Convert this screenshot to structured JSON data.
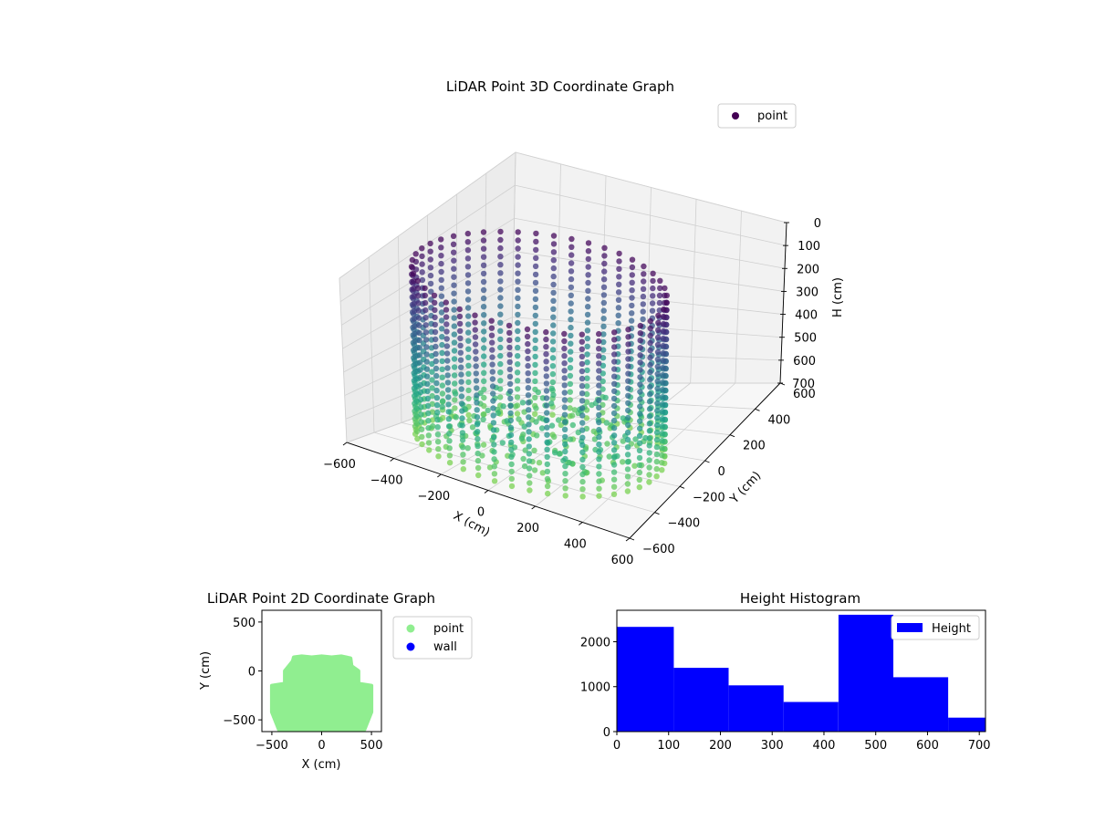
{
  "chart_data": [
    {
      "type": "scatter3d",
      "title": "LiDAR Point 3D Coordinate Graph",
      "xlabel": "X (cm)",
      "ylabel": "Y (cm)",
      "zlabel": "H (cm)",
      "xlim": [
        -600,
        600
      ],
      "ylim": [
        -600,
        600
      ],
      "zlim": [
        0,
        700
      ],
      "z_inverted": true,
      "x_ticks": [
        -600,
        -400,
        -200,
        0,
        200,
        400,
        600
      ],
      "y_ticks": [
        -600,
        -400,
        -200,
        0,
        200,
        400,
        600
      ],
      "z_ticks": [
        0,
        100,
        200,
        300,
        400,
        500,
        600,
        700
      ],
      "legend": {
        "placement": "top-right",
        "entries": [
          {
            "name": "point",
            "color": "#440154"
          }
        ]
      },
      "colormap": "viridis",
      "point_shape": {
        "x_range": [
          -500,
          500
        ],
        "y_range": [
          -550,
          150
        ],
        "h_range": [
          0,
          700
        ]
      },
      "grid": true
    },
    {
      "type": "scatter",
      "title": "LiDAR Point 2D Coordinate Graph",
      "xlabel": "X (cm)",
      "ylabel": "Y (cm)",
      "xlim": [
        -600,
        600
      ],
      "ylim": [
        -620,
        620
      ],
      "x_ticks": [
        -500,
        0,
        500
      ],
      "y_ticks": [
        -500,
        0,
        500
      ],
      "legend": {
        "placement": "outside-right",
        "entries": [
          {
            "name": "point",
            "color": "#90ee90"
          },
          {
            "name": "wall",
            "color": "#0000ff"
          }
        ]
      },
      "footprint": {
        "name": "point",
        "color": "#90ee90",
        "outline": [
          [
            -430,
            -600
          ],
          [
            -500,
            -420
          ],
          [
            -500,
            -150
          ],
          [
            -370,
            -130
          ],
          [
            -370,
            0
          ],
          [
            -330,
            50
          ],
          [
            -290,
            100
          ],
          [
            -280,
            140
          ],
          [
            -200,
            150
          ],
          [
            -100,
            140
          ],
          [
            0,
            150
          ],
          [
            100,
            140
          ],
          [
            200,
            150
          ],
          [
            290,
            130
          ],
          [
            300,
            50
          ],
          [
            370,
            0
          ],
          [
            370,
            -130
          ],
          [
            500,
            -150
          ],
          [
            500,
            -420
          ],
          [
            430,
            -600
          ]
        ]
      }
    },
    {
      "type": "bar",
      "title": "Height Histogram",
      "xlim": [
        0,
        712
      ],
      "ylim": [
        0,
        2700
      ],
      "x_ticks": [
        0,
        100,
        200,
        300,
        400,
        500,
        600,
        700
      ],
      "y_ticks": [
        0,
        1000,
        2000
      ],
      "bin_edges": [
        0,
        110,
        216,
        322,
        428,
        534,
        640,
        712
      ],
      "values": [
        2330,
        1420,
        1030,
        660,
        2600,
        1210,
        310
      ],
      "legend": {
        "placement": "top-right",
        "entries": [
          {
            "name": "Height",
            "color": "#0000ff"
          }
        ]
      }
    }
  ]
}
